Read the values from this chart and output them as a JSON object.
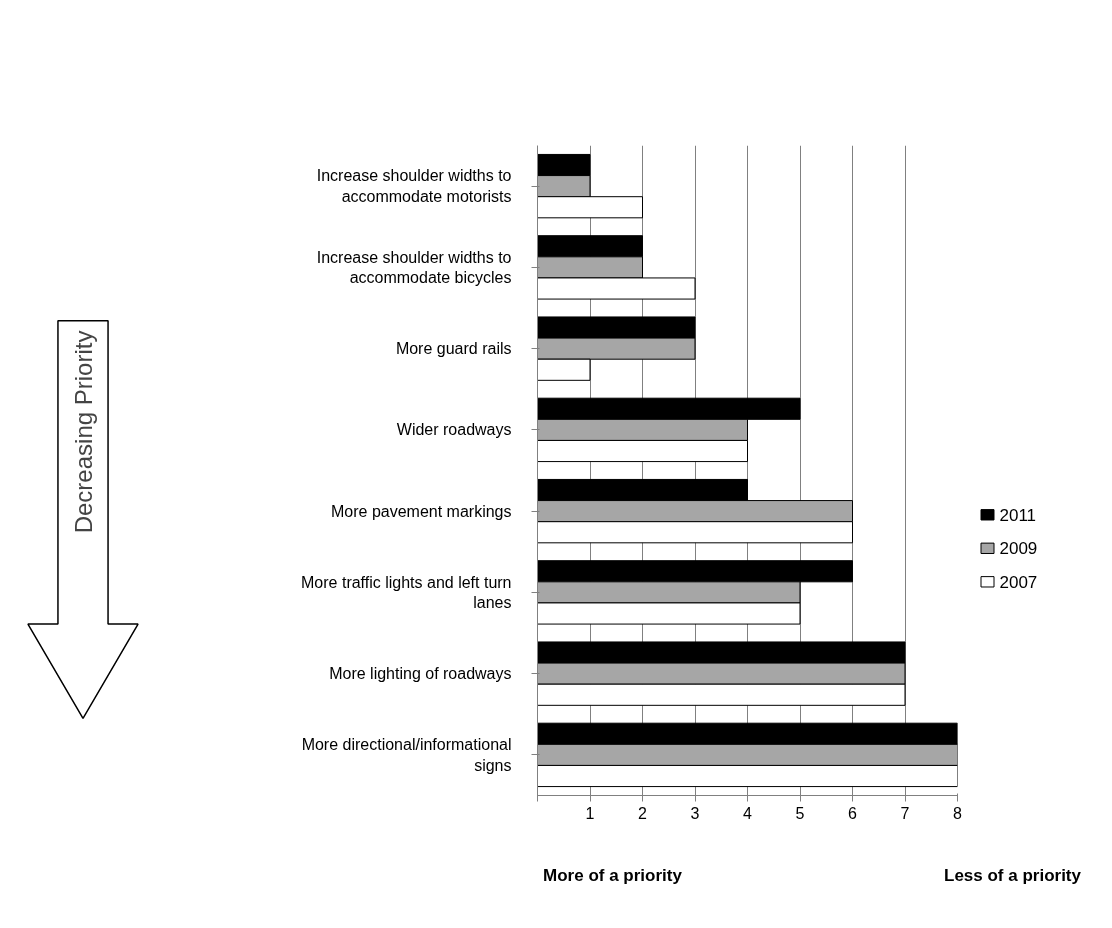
{
  "chart_data": {
    "type": "bar",
    "orientation": "horizontal",
    "categories": [
      "Increase shoulder widths to accommodate motorists",
      "Increase shoulder widths to accommodate bicycles",
      "More guard rails",
      "Wider roadways",
      "More pavement markings",
      "More traffic lights and left turn lanes",
      "More lighting of roadways",
      "More directional/informational signs"
    ],
    "series": [
      {
        "name": "2011",
        "color": "#000000",
        "values": [
          1,
          2,
          3,
          5,
          4,
          6,
          7,
          8
        ]
      },
      {
        "name": "2009",
        "color": "#a6a6a6",
        "values": [
          1,
          2,
          3,
          4,
          6,
          5,
          7,
          8
        ]
      },
      {
        "name": "2007",
        "color": "#ffffff",
        "values": [
          2,
          3,
          1,
          4,
          6,
          5,
          7,
          8
        ]
      }
    ],
    "xlim": [
      0,
      8
    ],
    "xticks": [
      {
        "value": 0,
        "label": null
      },
      1,
      2,
      3,
      4,
      5,
      6,
      7,
      8
    ],
    "grid": "x",
    "legend": "right",
    "annotations": [
      "Decreasing Priority",
      "More of a priority",
      "Less of a priority"
    ]
  }
}
